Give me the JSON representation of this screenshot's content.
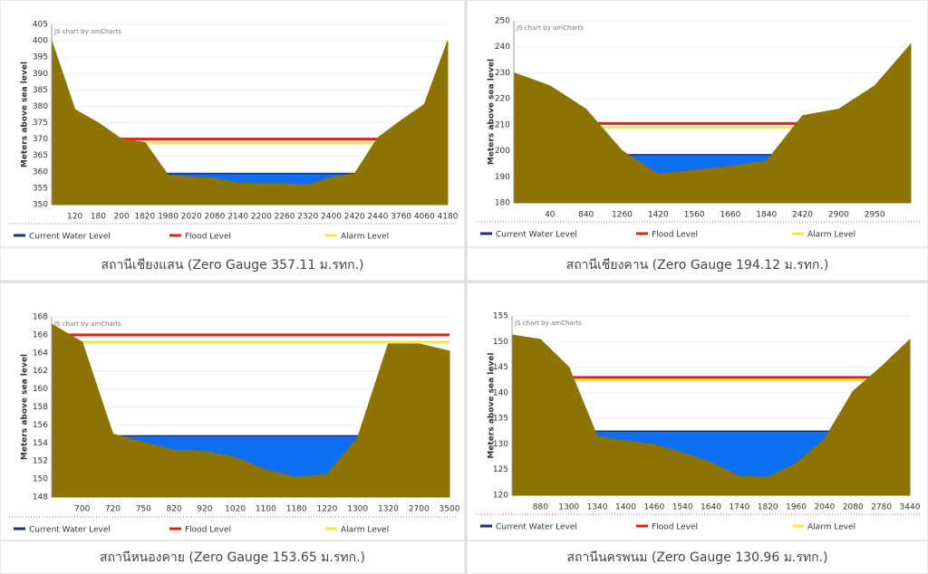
{
  "chart_data": [
    {
      "type": "area",
      "title": "สถานีเชียงแสน (Zero Gauge 357.11 ม.รทก.)",
      "credit": "JS chart by amCharts",
      "ylabel": "Meters above sea level",
      "categories": [
        null,
        "120",
        "180",
        "200",
        "1820",
        "1980",
        "2020",
        "2080",
        "2140",
        "2200",
        "2260",
        "2320",
        "2400",
        "2420",
        "2440",
        "3760",
        "4060",
        "4180"
      ],
      "values": [
        400,
        379,
        375,
        370,
        369,
        359,
        358.5,
        358,
        356.6,
        356.4,
        356.4,
        356,
        358.3,
        359.4,
        370.4,
        375.7,
        380.6,
        400
      ],
      "color": "#8b7304",
      "ylim": [
        350,
        405
      ],
      "yticks": [
        350,
        355,
        360,
        365,
        370,
        375,
        380,
        385,
        390,
        395,
        400,
        405
      ],
      "grid": true,
      "series": [
        {
          "name": "Current Water Level",
          "color": "#1f2d7a",
          "fill": "#0f6ff2",
          "value": 359.5
        },
        {
          "name": "Flood Level",
          "color": "#e3201c",
          "value": 370
        },
        {
          "name": "Alarm Level",
          "color": "#f7e84a",
          "value": 368.8
        }
      ]
    },
    {
      "type": "area",
      "title": "สถานีเชียงคาน (Zero Gauge 194.12 ม.รทก.)",
      "credit": "JS chart by amCharts",
      "ylabel": "Meters above sea level",
      "categories": [
        null,
        "40",
        "840",
        "1260",
        "1420",
        "1560",
        "1660",
        "1840",
        "2420",
        "2900",
        "2950",
        null
      ],
      "values": [
        230,
        225,
        216,
        200,
        191,
        192.5,
        194,
        196,
        213.5,
        216,
        225,
        241
      ],
      "color": "#8b7304",
      "ylim": [
        180,
        250
      ],
      "yticks": [
        180,
        190,
        200,
        210,
        220,
        230,
        240,
        250
      ],
      "grid": true,
      "series": [
        {
          "name": "Current Water Level",
          "color": "#1f2d7a",
          "fill": "#0f6ff2",
          "value": 198.5
        },
        {
          "name": "Flood Level",
          "color": "#e3201c",
          "value": 210.5
        },
        {
          "name": "Alarm Level",
          "color": "#f7e84a",
          "value": 209
        }
      ]
    },
    {
      "type": "area",
      "title": "สถานีหนองคาย (Zero Gauge 153.65 ม.รทก.)",
      "credit": "JS chart by amCharts",
      "ylabel": "Meters above sea level",
      "categories": [
        null,
        "700",
        "720",
        "750",
        "820",
        "920",
        "1020",
        "1100",
        "1180",
        "1220",
        "1300",
        "1320",
        "2700",
        "3500"
      ],
      "values": [
        167.2,
        165.2,
        155,
        154.1,
        153.2,
        153.1,
        152.4,
        151,
        150.2,
        150.5,
        154.6,
        165,
        165,
        164.2
      ],
      "color": "#8b7304",
      "ylim": [
        148,
        168
      ],
      "yticks": [
        148,
        150,
        152,
        154,
        156,
        158,
        160,
        162,
        164,
        166,
        168
      ],
      "grid": true,
      "series": [
        {
          "name": "Current Water Level",
          "color": "#1f2d7a",
          "fill": "#0f6ff2",
          "value": 154.8
        },
        {
          "name": "Flood Level",
          "color": "#e3201c",
          "value": 166
        },
        {
          "name": "Alarm Level",
          "color": "#f7e84a",
          "value": 165.2
        }
      ]
    },
    {
      "type": "area",
      "title": "สถานีนครพนม (Zero Gauge 130.96 ม.รทก.)",
      "credit": "JS chart by amCharts",
      "ylabel": "Meters above sea level",
      "categories": [
        null,
        "880",
        "1300",
        "1340",
        "1400",
        "1460",
        "1540",
        "1640",
        "1740",
        "1820",
        "1960",
        "2040",
        "2080",
        "2780",
        "3440"
      ],
      "values": [
        151.3,
        150.4,
        145,
        131.5,
        130.6,
        129.9,
        128.3,
        126.4,
        123.7,
        123.5,
        126.2,
        131,
        140.3,
        145.1,
        150.4
      ],
      "color": "#8b7304",
      "ylim": [
        120,
        155
      ],
      "yticks": [
        120,
        125,
        130,
        135,
        140,
        145,
        150,
        155
      ],
      "grid": true,
      "series": [
        {
          "name": "Current Water Level",
          "color": "#1f2d7a",
          "fill": "#0f6ff2",
          "value": 132.5
        },
        {
          "name": "Flood Level",
          "color": "#e3201c",
          "value": 143
        },
        {
          "name": "Alarm Level",
          "color": "#f7e84a",
          "value": 142.5
        }
      ]
    }
  ]
}
